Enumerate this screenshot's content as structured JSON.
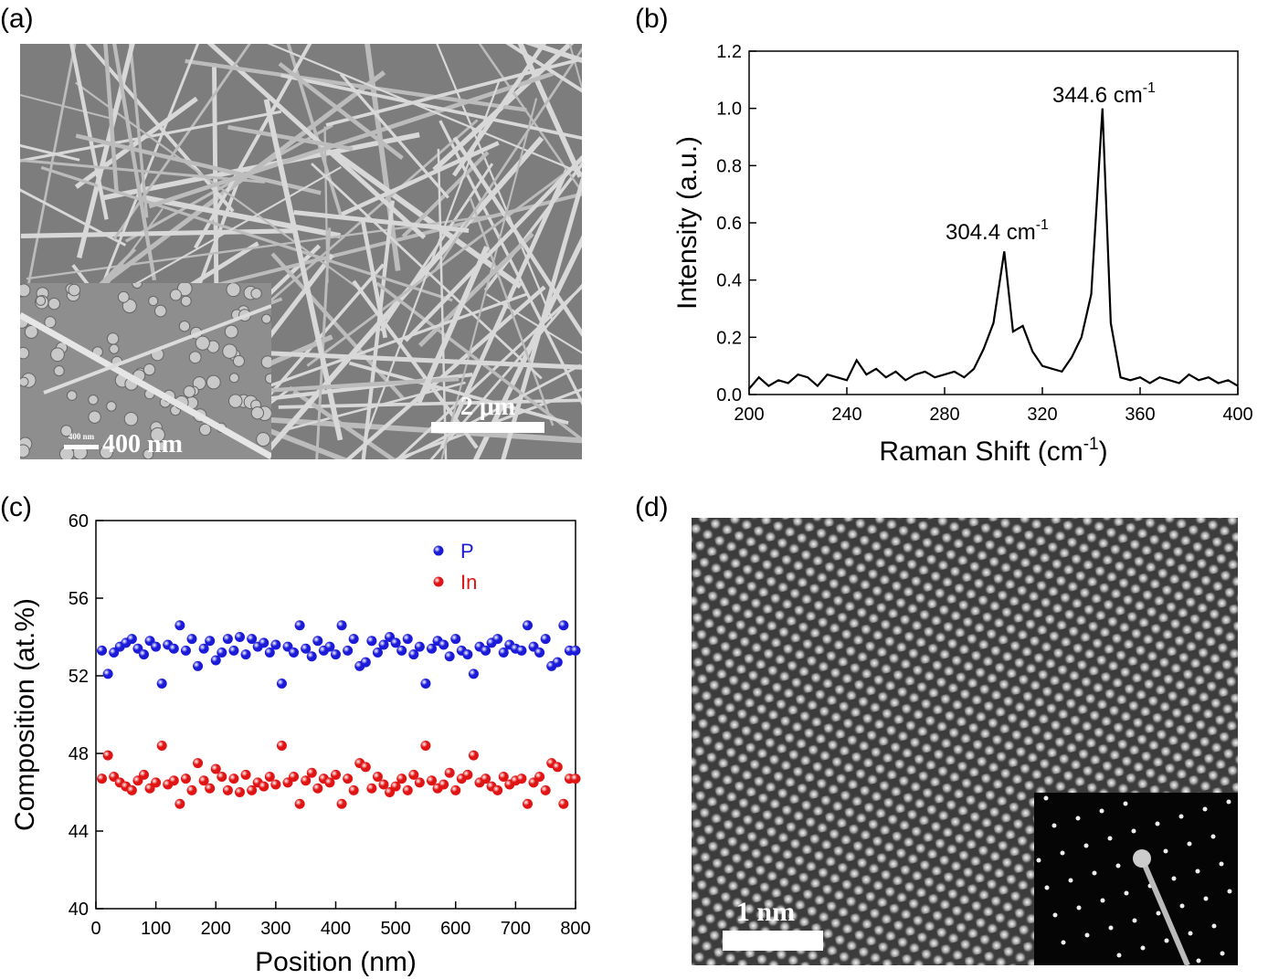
{
  "panels": {
    "a": {
      "label": "(a)",
      "scale_bar": "2 μm",
      "inset_scale_bar": "400 nm",
      "inset_small_label": "400 nm"
    },
    "b": {
      "label": "(b)"
    },
    "c": {
      "label": "(c)"
    },
    "d": {
      "label": "(d)",
      "scale_bar": "1 nm"
    }
  },
  "chart_data": [
    {
      "type": "line",
      "x_label": "Raman Shift (cm",
      "x_label_sup": "-1",
      "x_label_end": ")",
      "y_label": "Intensity (a.u.)",
      "annotations": [
        {
          "text": "304.4 cm",
          "sup": "-1"
        },
        {
          "text": "344.6 cm",
          "sup": "-1"
        }
      ],
      "x": [
        200,
        204,
        208,
        212,
        216,
        220,
        224,
        228,
        232,
        236,
        240,
        244,
        248,
        252,
        256,
        260,
        264,
        268,
        272,
        276,
        280,
        284,
        288,
        292,
        296,
        300,
        304.4,
        308,
        312,
        316,
        320,
        324,
        328,
        332,
        336,
        340,
        344.6,
        348,
        352,
        356,
        360,
        364,
        368,
        372,
        376,
        380,
        384,
        388,
        392,
        396,
        400
      ],
      "values": [
        0.02,
        0.06,
        0.03,
        0.05,
        0.04,
        0.07,
        0.06,
        0.03,
        0.07,
        0.06,
        0.05,
        0.12,
        0.07,
        0.09,
        0.06,
        0.08,
        0.05,
        0.07,
        0.08,
        0.06,
        0.07,
        0.08,
        0.06,
        0.09,
        0.16,
        0.25,
        0.5,
        0.22,
        0.24,
        0.15,
        0.1,
        0.09,
        0.08,
        0.13,
        0.2,
        0.35,
        1.0,
        0.25,
        0.06,
        0.05,
        0.06,
        0.04,
        0.06,
        0.05,
        0.04,
        0.07,
        0.05,
        0.06,
        0.04,
        0.05,
        0.03
      ],
      "color": "#000000",
      "xlim": [
        200,
        400
      ],
      "xticks": [
        200,
        240,
        280,
        320,
        360,
        400
      ],
      "ylim": [
        0,
        1.2
      ],
      "yticks": [
        {
          "value": 0,
          "label": "0.0"
        },
        0.2,
        0.4,
        0.6,
        0.8,
        {
          "value": 1,
          "label": "1.0"
        },
        1.2
      ]
    },
    {
      "type": "scatter",
      "x_label": "Position (nm)",
      "y_label": "Composition (at.%)",
      "x": [
        10,
        20,
        30,
        40,
        50,
        60,
        70,
        80,
        90,
        100,
        110,
        120,
        130,
        140,
        150,
        160,
        170,
        180,
        190,
        200,
        210,
        220,
        230,
        240,
        250,
        260,
        270,
        280,
        290,
        300,
        310,
        320,
        330,
        340,
        350,
        360,
        370,
        380,
        390,
        400,
        410,
        420,
        430,
        440,
        450,
        460,
        470,
        480,
        490,
        500,
        510,
        520,
        530,
        540,
        550,
        560,
        570,
        580,
        590,
        600,
        610,
        620,
        630,
        640,
        650,
        660,
        670,
        680,
        690,
        700,
        710,
        720,
        730,
        740,
        750,
        760,
        770,
        780,
        790,
        800
      ],
      "series": [
        {
          "name": "P",
          "color": "#1a1ad8",
          "values": [
            53.3,
            52.1,
            53.2,
            53.5,
            53.7,
            53.9,
            53.4,
            53.1,
            53.8,
            53.5,
            51.6,
            53.6,
            53.4,
            54.6,
            53.3,
            53.9,
            52.5,
            53.4,
            53.8,
            52.8,
            53.2,
            53.9,
            53.3,
            54.0,
            53.1,
            53.9,
            53.5,
            53.7,
            53.2,
            53.6,
            51.6,
            53.5,
            53.2,
            54.6,
            53.4,
            53.0,
            53.8,
            53.3,
            53.5,
            53.1,
            54.6,
            53.3,
            53.9,
            52.5,
            52.7,
            53.8,
            53.2,
            53.6,
            54.0,
            53.7,
            53.3,
            53.9,
            53.1,
            53.5,
            51.6,
            53.4,
            53.8,
            53.6,
            53.0,
            53.9,
            53.3,
            53.1,
            52.1,
            53.5,
            53.3,
            53.7,
            53.9,
            53.2,
            53.6,
            53.4,
            53.3,
            54.6,
            53.5,
            53.2,
            53.9,
            52.5,
            52.7,
            54.6,
            53.3,
            53.3
          ]
        },
        {
          "name": "In",
          "color": "#e01414",
          "values": [
            46.7,
            47.9,
            46.8,
            46.5,
            46.3,
            46.1,
            46.6,
            46.9,
            46.2,
            46.5,
            48.4,
            46.4,
            46.6,
            45.4,
            46.7,
            46.1,
            47.5,
            46.6,
            46.2,
            47.2,
            46.8,
            46.1,
            46.7,
            46.0,
            46.9,
            46.1,
            46.5,
            46.3,
            46.8,
            46.4,
            48.4,
            46.5,
            46.8,
            45.4,
            46.6,
            47.0,
            46.2,
            46.7,
            46.5,
            46.9,
            45.4,
            46.7,
            46.1,
            47.5,
            47.3,
            46.2,
            46.8,
            46.4,
            46.0,
            46.3,
            46.7,
            46.1,
            46.9,
            46.5,
            48.4,
            46.6,
            46.2,
            46.4,
            47.0,
            46.1,
            46.7,
            46.9,
            47.9,
            46.5,
            46.7,
            46.3,
            46.1,
            46.8,
            46.4,
            46.6,
            46.7,
            45.4,
            46.5,
            46.8,
            46.1,
            47.5,
            47.3,
            45.4,
            46.7,
            46.7
          ]
        }
      ],
      "legend": "upper right",
      "xlim": [
        0,
        800
      ],
      "xticks": [
        0,
        100,
        200,
        300,
        400,
        500,
        600,
        700,
        800
      ],
      "ylim": [
        40,
        60
      ],
      "yticks": [
        40,
        44,
        48,
        52,
        56,
        60
      ]
    }
  ]
}
